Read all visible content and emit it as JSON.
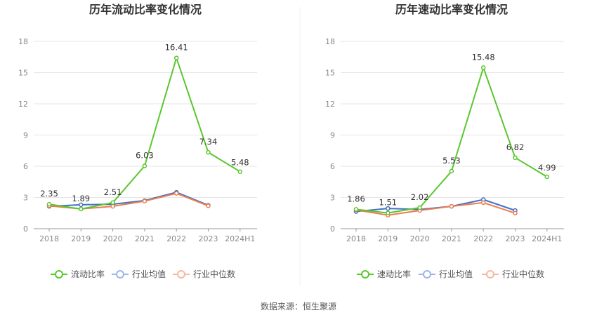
{
  "colors": {
    "main": "#5ac72e",
    "avg": "#4472c4",
    "median": "#ed7d4f",
    "avg_legend": "#9db5e8",
    "median_legend": "#f5b8a0",
    "grid": "#e6e6e6",
    "axis": "#999999"
  },
  "source_text": "数据来源：恒生聚源",
  "chart_data": [
    {
      "type": "line",
      "title": "历年流动比率变化情况",
      "categories": [
        "2018",
        "2019",
        "2020",
        "2021",
        "2022",
        "2023",
        "2024H1"
      ],
      "ylim": [
        0,
        18
      ],
      "yticks": [
        "0",
        "3",
        "6",
        "9",
        "12",
        "15",
        "18"
      ],
      "series": [
        {
          "name": "流动比率",
          "key": "main",
          "values": [
            2.35,
            1.89,
            2.51,
            6.03,
            16.41,
            7.34,
            5.48
          ],
          "labels": [
            "2.35",
            "1.89",
            "2.51",
            "6.03",
            "16.41",
            "7.34",
            "5.48"
          ]
        },
        {
          "name": "行业均值",
          "key": "avg",
          "values": [
            2.15,
            2.3,
            2.35,
            2.7,
            3.5,
            2.25,
            null
          ]
        },
        {
          "name": "行业中位数",
          "key": "median",
          "values": [
            2.2,
            1.9,
            2.15,
            2.65,
            3.4,
            2.2,
            null
          ]
        }
      ]
    },
    {
      "type": "line",
      "title": "历年速动比率变化情况",
      "categories": [
        "2018",
        "2019",
        "2020",
        "2021",
        "2022",
        "2023",
        "2024H1"
      ],
      "ylim": [
        0,
        18
      ],
      "yticks": [
        "0",
        "3",
        "6",
        "9",
        "12",
        "15",
        "18"
      ],
      "series": [
        {
          "name": "速动比率",
          "key": "main",
          "values": [
            1.86,
            1.51,
            2.02,
            5.53,
            15.48,
            6.82,
            4.99
          ],
          "labels": [
            "1.86",
            "1.51",
            "2.02",
            "5.53",
            "15.48",
            "6.82",
            "4.99"
          ]
        },
        {
          "name": "行业均值",
          "key": "avg",
          "values": [
            1.65,
            1.95,
            1.85,
            2.15,
            2.8,
            1.75,
            null
          ]
        },
        {
          "name": "行业中位数",
          "key": "median",
          "values": [
            1.8,
            1.3,
            1.75,
            2.15,
            2.5,
            1.5,
            null
          ]
        }
      ]
    }
  ]
}
